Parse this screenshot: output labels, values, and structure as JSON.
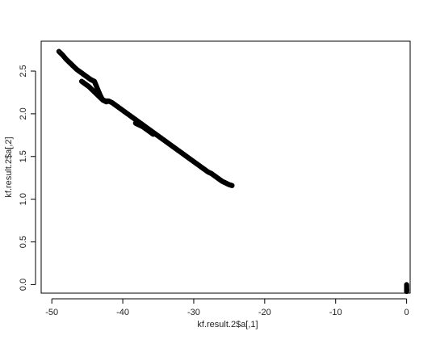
{
  "chart_data": {
    "type": "scatter",
    "xlabel": "kf.result.2$a[,1]",
    "ylabel": "kf.result.2$a[,2]",
    "xlim": [
      -51.5,
      0.5
    ],
    "ylim": [
      -0.1,
      2.85
    ],
    "xticks": [
      -50,
      -40,
      -30,
      -20,
      -10,
      0
    ],
    "yticks": [
      0.0,
      0.5,
      1.0,
      1.5,
      2.0,
      2.5
    ],
    "xtick_labels": [
      "-50",
      "-40",
      "-30",
      "-20",
      "-10",
      "0"
    ],
    "ytick_labels": [
      "0.0",
      "0.5",
      "1.0",
      "1.5",
      "2.0",
      "2.5"
    ],
    "point_color": "#000000",
    "series": [
      {
        "points": [
          [
            -49.0,
            2.73
          ],
          [
            -48.5,
            2.69
          ],
          [
            -48.0,
            2.64
          ],
          [
            -47.5,
            2.6
          ],
          [
            -47.0,
            2.56
          ],
          [
            -46.5,
            2.52
          ],
          [
            -46.0,
            2.49
          ],
          [
            -45.5,
            2.46
          ],
          [
            -45.0,
            2.43
          ],
          [
            -44.5,
            2.4
          ],
          [
            -44.0,
            2.38
          ],
          [
            -43.8,
            2.34
          ],
          [
            -43.5,
            2.28
          ],
          [
            -43.2,
            2.22
          ],
          [
            -42.9,
            2.17
          ],
          [
            -42.5,
            2.15
          ],
          [
            -42.0,
            2.15
          ],
          [
            -41.5,
            2.13
          ],
          [
            -41.0,
            2.1
          ],
          [
            -40.5,
            2.07
          ],
          [
            -40.0,
            2.04
          ],
          [
            -39.5,
            2.01
          ],
          [
            -39.0,
            1.98
          ],
          [
            -38.5,
            1.95
          ],
          [
            -38.0,
            1.92
          ],
          [
            -37.5,
            1.89
          ],
          [
            -37.0,
            1.86
          ],
          [
            -36.5,
            1.83
          ],
          [
            -36.0,
            1.8
          ],
          [
            -35.5,
            1.77
          ],
          [
            -35.0,
            1.74
          ],
          [
            -34.5,
            1.71
          ],
          [
            -34.0,
            1.68
          ],
          [
            -33.5,
            1.65
          ],
          [
            -33.0,
            1.62
          ],
          [
            -32.5,
            1.59
          ],
          [
            -32.0,
            1.56
          ],
          [
            -31.5,
            1.53
          ],
          [
            -31.0,
            1.5
          ],
          [
            -30.5,
            1.47
          ],
          [
            -30.0,
            1.44
          ],
          [
            -29.5,
            1.41
          ],
          [
            -29.0,
            1.38
          ],
          [
            -28.5,
            1.35
          ],
          [
            -28.0,
            1.32
          ],
          [
            -27.5,
            1.3
          ],
          [
            -27.0,
            1.27
          ],
          [
            -26.5,
            1.24
          ],
          [
            -26.0,
            1.21
          ],
          [
            -25.5,
            1.19
          ],
          [
            -25.0,
            1.17
          ],
          [
            -24.6,
            1.16
          ]
        ]
      },
      {
        "points": [
          [
            -45.8,
            2.38
          ],
          [
            -45.3,
            2.35
          ],
          [
            -44.8,
            2.32
          ],
          [
            -44.3,
            2.28
          ],
          [
            -43.8,
            2.24
          ],
          [
            -43.3,
            2.2
          ],
          [
            -42.8,
            2.16
          ],
          [
            -42.3,
            2.14
          ]
        ]
      },
      {
        "points": [
          [
            -38.2,
            1.89
          ],
          [
            -37.7,
            1.87
          ],
          [
            -37.2,
            1.85
          ],
          [
            -36.7,
            1.82
          ],
          [
            -36.2,
            1.79
          ],
          [
            -35.7,
            1.76
          ]
        ]
      },
      {
        "points": [
          [
            0.0,
            0.0
          ],
          [
            0.0,
            -0.05
          ],
          [
            0.0,
            -0.07
          ],
          [
            0.0,
            -0.08
          ]
        ]
      }
    ]
  }
}
